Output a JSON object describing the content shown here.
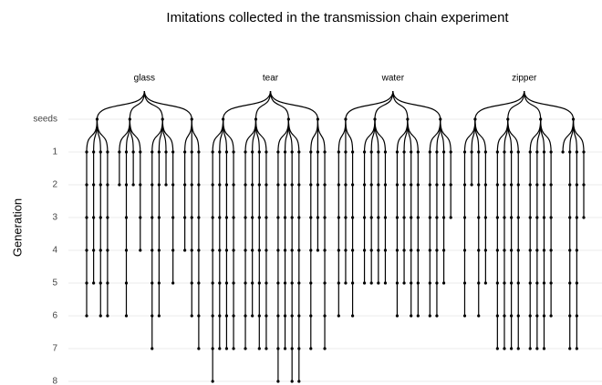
{
  "chart_data": {
    "type": "tree",
    "title": "Imitations collected in the transmission chain experiment",
    "y_label": "Generation",
    "y_categories": [
      "seeds",
      "1",
      "2",
      "3",
      "4",
      "5",
      "6",
      "7",
      "8"
    ],
    "groups": [
      {
        "name": "glass",
        "seeds": [
          [
            6,
            5,
            6,
            6
          ],
          [
            2,
            6,
            2,
            4
          ],
          [
            7,
            6,
            2,
            5
          ],
          [
            4,
            6,
            7
          ]
        ]
      },
      {
        "name": "tear",
        "seeds": [
          [
            8,
            7,
            7,
            7
          ],
          [
            7,
            6,
            7,
            7
          ],
          [
            8,
            7,
            8,
            8
          ],
          [
            7,
            4,
            7
          ]
        ]
      },
      {
        "name": "water",
        "seeds": [
          [
            6,
            5,
            6
          ],
          [
            5,
            5,
            5,
            5
          ],
          [
            6,
            5,
            6,
            6
          ],
          [
            6,
            6,
            5,
            3
          ]
        ]
      },
      {
        "name": "zipper",
        "seeds": [
          [
            6,
            2,
            6,
            5
          ],
          [
            7,
            7,
            7,
            7
          ],
          [
            7,
            7,
            7,
            6
          ],
          [
            1,
            7,
            7,
            3
          ]
        ]
      }
    ],
    "color": "#000000",
    "grid": true
  }
}
